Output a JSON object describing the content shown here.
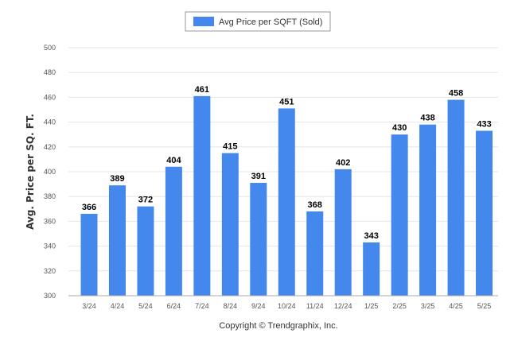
{
  "chart_data": {
    "type": "bar",
    "categories": [
      "3/24",
      "4/24",
      "5/24",
      "6/24",
      "7/24",
      "8/24",
      "9/24",
      "10/24",
      "11/24",
      "12/24",
      "1/25",
      "2/25",
      "3/25",
      "4/25",
      "5/25"
    ],
    "series": [
      {
        "name": "Avg Price per SQFT (Sold)",
        "values": [
          366,
          389,
          372,
          404,
          461,
          415,
          391,
          451,
          368,
          402,
          343,
          430,
          438,
          458,
          433
        ]
      }
    ],
    "title": "",
    "xlabel": "",
    "ylabel": "Avg. Price per SQ. FT.",
    "ylim": [
      300,
      500
    ],
    "yticks": [
      300,
      320,
      340,
      360,
      380,
      400,
      420,
      440,
      460,
      480,
      500
    ],
    "grid": true,
    "legend_position": "top-center",
    "bar_color": "#4488EE"
  },
  "footer": {
    "copyright": "Copyright © Trendgraphix, Inc."
  }
}
